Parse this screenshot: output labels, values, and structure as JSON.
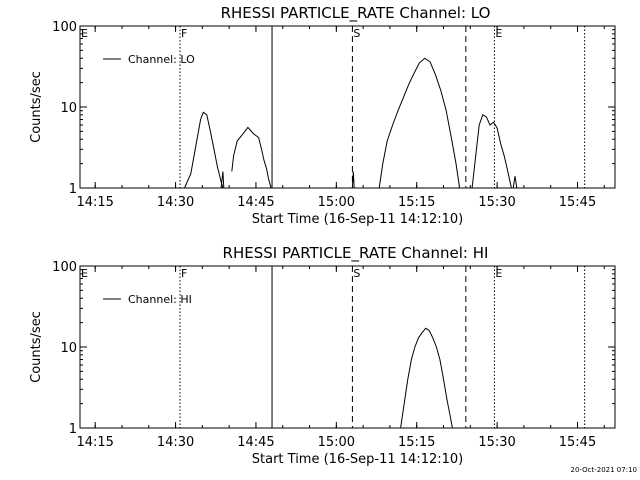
{
  "chart_data": [
    {
      "type": "line",
      "title": "RHESSI PARTICLE_RATE Channel: LO",
      "xlabel": "Start Time (16-Sep-11 14:12:10)",
      "ylabel": "Counts/sec",
      "yscale": "log",
      "ylim": [
        1,
        100
      ],
      "xlim": [
        "14:12:10",
        "15:52:00"
      ],
      "xticks": [
        "14:15",
        "14:30",
        "14:45",
        "15:00",
        "15:15",
        "15:30",
        "15:45"
      ],
      "yticks": [
        "1",
        "10",
        "100"
      ],
      "legend": {
        "label": "Channel: LO",
        "position": "top-left"
      },
      "markers": [
        {
          "label": "E",
          "time": "14:12:10",
          "style": "dotted"
        },
        {
          "label": "F",
          "time": "14:30:50",
          "style": "dotted"
        },
        {
          "label": "",
          "time": "14:48:00",
          "style": "solid"
        },
        {
          "label": "S",
          "time": "15:03:00",
          "style": "dashed"
        },
        {
          "label": "",
          "time": "15:24:10",
          "style": "dashed"
        },
        {
          "label": "E",
          "time": "15:29:30",
          "style": "dotted"
        },
        {
          "label": "",
          "time": "15:46:20",
          "style": "dotted"
        }
      ],
      "series": [
        {
          "name": "Channel: LO",
          "segments": [
            {
              "x": [
                "14:31:40",
                "14:32:50",
                "14:33:40",
                "14:34:40",
                "14:35:10",
                "14:35:50",
                "14:36:30",
                "14:37:10",
                "14:37:50",
                "14:38:30",
                "14:38:50"
              ],
              "y": [
                1,
                1.5,
                3,
                7,
                8.6,
                8,
                5,
                3,
                1.8,
                1.2,
                1
              ]
            },
            {
              "x": [
                "14:38:30",
                "14:38:50",
                "14:39:00"
              ],
              "y": [
                1,
                1.6,
                1
              ]
            },
            {
              "x": [
                "14:40:30",
                "14:40:50",
                "14:41:30",
                "14:42:30",
                "14:43:30",
                "14:44:30",
                "14:45:30",
                "14:46:00",
                "14:46:30",
                "14:47:00",
                "14:47:20",
                "14:47:50",
                "14:48:00"
              ],
              "y": [
                1.6,
                2.5,
                3.8,
                4.6,
                5.6,
                4.7,
                4.2,
                3.1,
                2.2,
                1.7,
                1.3,
                1,
                1
              ]
            },
            {
              "x": [
                "15:03:00",
                "15:03:10",
                "15:03:20"
              ],
              "y": [
                1,
                1.6,
                1
              ]
            },
            {
              "x": [
                "15:08:00",
                "15:08:40",
                "15:09:30",
                "15:10:30",
                "15:11:30",
                "15:12:30",
                "15:13:30",
                "15:14:30",
                "15:15:30",
                "15:16:30",
                "15:17:30",
                "15:18:30",
                "15:19:30",
                "15:20:30",
                "15:21:30",
                "15:22:20",
                "15:23:00"
              ],
              "y": [
                1,
                2,
                3.8,
                6,
                9,
                13,
                19,
                26,
                35,
                40,
                36,
                25,
                16,
                9,
                4,
                2,
                1
              ]
            },
            {
              "x": [
                "15:25:20",
                "15:26:00",
                "15:26:40",
                "15:27:20",
                "15:28:00",
                "15:28:40",
                "15:29:20",
                "15:30:00",
                "15:30:40",
                "15:31:20",
                "15:32:00",
                "15:32:40"
              ],
              "y": [
                1,
                2.5,
                6,
                8,
                7.5,
                6,
                6.5,
                5.5,
                3.5,
                2.5,
                1.6,
                1
              ]
            },
            {
              "x": [
                "15:33:00",
                "15:33:20",
                "15:33:40"
              ],
              "y": [
                1,
                1.4,
                1
              ]
            }
          ]
        }
      ]
    },
    {
      "type": "line",
      "title": "RHESSI PARTICLE_RATE Channel: HI",
      "xlabel": "Start Time (16-Sep-11 14:12:10)",
      "ylabel": "Counts/sec",
      "yscale": "log",
      "ylim": [
        1,
        100
      ],
      "xlim": [
        "14:12:10",
        "15:52:00"
      ],
      "xticks": [
        "14:15",
        "14:30",
        "14:45",
        "15:00",
        "15:15",
        "15:30",
        "15:45"
      ],
      "yticks": [
        "1",
        "10",
        "100"
      ],
      "legend": {
        "label": "Channel: HI",
        "position": "top-left"
      },
      "markers": [
        {
          "label": "E",
          "time": "14:12:10",
          "style": "dotted"
        },
        {
          "label": "F",
          "time": "14:30:50",
          "style": "dotted"
        },
        {
          "label": "",
          "time": "14:48:00",
          "style": "solid"
        },
        {
          "label": "S",
          "time": "15:03:00",
          "style": "dashed"
        },
        {
          "label": "",
          "time": "15:24:10",
          "style": "dashed"
        },
        {
          "label": "E",
          "time": "15:29:30",
          "style": "dotted"
        },
        {
          "label": "",
          "time": "15:46:20",
          "style": "dotted"
        }
      ],
      "series": [
        {
          "name": "Channel: HI",
          "segments": [
            {
              "x": [
                "15:12:00",
                "15:12:40",
                "15:13:20",
                "15:14:00",
                "15:14:40",
                "15:15:20",
                "15:16:00",
                "15:16:40",
                "15:17:20",
                "15:18:00",
                "15:18:40",
                "15:19:20",
                "15:20:00",
                "15:20:40",
                "15:21:20",
                "15:21:40"
              ],
              "y": [
                1,
                2,
                4,
                7,
                10,
                13,
                15,
                17,
                16,
                13,
                10,
                7,
                4,
                2.2,
                1.3,
                1
              ]
            }
          ]
        }
      ]
    }
  ],
  "footer": {
    "stamp": "20-Oct-2021 07:10"
  }
}
